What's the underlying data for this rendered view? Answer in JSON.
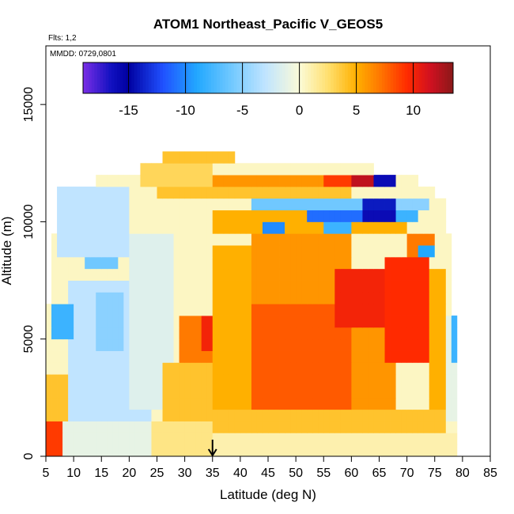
{
  "chart_data": {
    "type": "heatmap",
    "title": "ATOM1 Northeast_Pacific V_GEOS5",
    "notes": {
      "flights": "Flts: 1,2",
      "dates": "MMDD: 0729,0801"
    },
    "xlabel": "Latitude (deg N)",
    "ylabel": "Altitude (m)",
    "xlim": [
      5,
      85
    ],
    "ylim": [
      0,
      17500
    ],
    "x_ticks": [
      5,
      10,
      15,
      20,
      25,
      30,
      35,
      40,
      45,
      50,
      55,
      60,
      65,
      70,
      75,
      80,
      85
    ],
    "y_ticks": [
      0,
      5000,
      10000,
      15000
    ],
    "colorbar": {
      "range": [
        -19,
        13.5
      ],
      "ticks": [
        -15,
        -10,
        -5,
        0,
        5,
        10
      ],
      "tick_labels": [
        "-15",
        "-10",
        "-5",
        "0",
        "5",
        "10"
      ],
      "palette": [
        [
          -19,
          "#7a2ee6"
        ],
        [
          -16.5,
          "#1010c0"
        ],
        [
          -15,
          "#0000a0"
        ],
        [
          -12,
          "#2050ff"
        ],
        [
          -9,
          "#22a8ff"
        ],
        [
          -6,
          "#70c8ff"
        ],
        [
          -3,
          "#c0e4ff"
        ],
        [
          0,
          "#fbfbd8"
        ],
        [
          2.5,
          "#ffe070"
        ],
        [
          5,
          "#ffb000"
        ],
        [
          7,
          "#ff7a00"
        ],
        [
          9.5,
          "#ff2a00"
        ],
        [
          11.5,
          "#d01020"
        ],
        [
          13.5,
          "#8a1818"
        ]
      ]
    },
    "marker": {
      "latitude": 35,
      "symbol": "down-arrow"
    },
    "bins": {
      "dlat": 1,
      "dalt": 500
    },
    "coverage": [
      [
        0,
        1000,
        5,
        79
      ],
      [
        1000,
        2000,
        5,
        79
      ],
      [
        2000,
        3000,
        5,
        79
      ],
      [
        3000,
        4000,
        5,
        79
      ],
      [
        4000,
        5000,
        5,
        79
      ],
      [
        5000,
        5500,
        5,
        79
      ],
      [
        5500,
        6000,
        5,
        79
      ],
      [
        6000,
        6500,
        5,
        78
      ],
      [
        6500,
        7500,
        6,
        78
      ],
      [
        7500,
        8500,
        6,
        78
      ],
      [
        8500,
        9500,
        6,
        78
      ],
      [
        9500,
        10000,
        7,
        77
      ],
      [
        10000,
        11000,
        7,
        77
      ],
      [
        11000,
        11500,
        7,
        75
      ],
      [
        11500,
        12000,
        14,
        72
      ],
      [
        12000,
        12500,
        22,
        64
      ],
      [
        12500,
        13000,
        26,
        39
      ]
    ],
    "regions": [
      {
        "lat": [
          5,
          10
        ],
        "alt": [
          0,
          3500
        ],
        "v": 4
      },
      {
        "lat": [
          5,
          8
        ],
        "alt": [
          0,
          1500
        ],
        "v": 9
      },
      {
        "lat": [
          8,
          24
        ],
        "alt": [
          0,
          1500
        ],
        "v": -1
      },
      {
        "lat": [
          9,
          24
        ],
        "alt": [
          1500,
          7500
        ],
        "v": -3
      },
      {
        "lat": [
          12,
          18
        ],
        "alt": [
          8000,
          9500
        ],
        "v": -6
      },
      {
        "lat": [
          14,
          19
        ],
        "alt": [
          4500,
          7000
        ],
        "v": -5
      },
      {
        "lat": [
          6,
          10
        ],
        "alt": [
          5000,
          6500
        ],
        "v": -8
      },
      {
        "lat": [
          20,
          28
        ],
        "alt": [
          2000,
          9500
        ],
        "v": -1.5
      },
      {
        "lat": [
          24,
          35
        ],
        "alt": [
          0,
          1500
        ],
        "v": 2
      },
      {
        "lat": [
          26,
          35
        ],
        "alt": [
          1500,
          4000
        ],
        "v": 4
      },
      {
        "lat": [
          29,
          35
        ],
        "alt": [
          4000,
          6000
        ],
        "v": 7
      },
      {
        "lat": [
          33,
          35
        ],
        "alt": [
          4500,
          6000
        ],
        "v": 10
      },
      {
        "lat": [
          35,
          79
        ],
        "alt": [
          0,
          1000
        ],
        "v": 1
      },
      {
        "lat": [
          35,
          77
        ],
        "alt": [
          1000,
          2000
        ],
        "v": 4
      },
      {
        "lat": [
          35,
          42
        ],
        "alt": [
          2000,
          9000
        ],
        "v": 5
      },
      {
        "lat": [
          42,
          60
        ],
        "alt": [
          2000,
          6500
        ],
        "v": 8
      },
      {
        "lat": [
          42,
          60
        ],
        "alt": [
          6500,
          9500
        ],
        "v": 6
      },
      {
        "lat": [
          60,
          68
        ],
        "alt": [
          2000,
          5500
        ],
        "v": 6
      },
      {
        "lat": [
          57,
          66
        ],
        "alt": [
          5500,
          8000
        ],
        "v": 10
      },
      {
        "lat": [
          66,
          74
        ],
        "alt": [
          4000,
          8500
        ],
        "v": 9.5
      },
      {
        "lat": [
          74,
          77
        ],
        "alt": [
          2000,
          8000
        ],
        "v": 5
      },
      {
        "lat": [
          77,
          79
        ],
        "alt": [
          1500,
          6000
        ],
        "v": -1
      },
      {
        "lat": [
          78,
          79
        ],
        "alt": [
          4000,
          6000
        ],
        "v": -8
      },
      {
        "lat": [
          35,
          55
        ],
        "alt": [
          9500,
          10500
        ],
        "v": 5
      },
      {
        "lat": [
          44,
          48
        ],
        "alt": [
          9500,
          10000
        ],
        "v": -10
      },
      {
        "lat": [
          55,
          60
        ],
        "alt": [
          9500,
          10000
        ],
        "v": -8
      },
      {
        "lat": [
          60,
          70
        ],
        "alt": [
          9500,
          10500
        ],
        "v": 5
      },
      {
        "lat": [
          52,
          62
        ],
        "alt": [
          10000,
          10500
        ],
        "v": -11
      },
      {
        "lat": [
          62,
          68
        ],
        "alt": [
          10000,
          10500
        ],
        "v": -16
      },
      {
        "lat": [
          68,
          72
        ],
        "alt": [
          10000,
          10500
        ],
        "v": -8
      },
      {
        "lat": [
          42,
          62
        ],
        "alt": [
          10500,
          11000
        ],
        "v": -6
      },
      {
        "lat": [
          62,
          68
        ],
        "alt": [
          10500,
          11000
        ],
        "v": -14
      },
      {
        "lat": [
          68,
          74
        ],
        "alt": [
          10500,
          11000
        ],
        "v": -5
      },
      {
        "lat": [
          25,
          60
        ],
        "alt": [
          11000,
          11500
        ],
        "v": 4
      },
      {
        "lat": [
          50,
          60
        ],
        "alt": [
          11500,
          12000
        ],
        "v": 9
      },
      {
        "lat": [
          60,
          64
        ],
        "alt": [
          11500,
          12000
        ],
        "v": 12
      },
      {
        "lat": [
          64,
          68
        ],
        "alt": [
          11500,
          12000
        ],
        "v": -16
      },
      {
        "lat": [
          35,
          55
        ],
        "alt": [
          11500,
          12000
        ],
        "v": 6
      },
      {
        "lat": [
          22,
          35
        ],
        "alt": [
          11500,
          12500
        ],
        "v": 3
      },
      {
        "lat": [
          26,
          39
        ],
        "alt": [
          12500,
          13000
        ],
        "v": 4
      },
      {
        "lat": [
          7,
          20
        ],
        "alt": [
          8500,
          11500
        ],
        "v": -3
      },
      {
        "lat": [
          70,
          75
        ],
        "alt": [
          8500,
          9500
        ],
        "v": 7
      },
      {
        "lat": [
          72,
          75
        ],
        "alt": [
          8500,
          9000
        ],
        "v": -9
      }
    ]
  }
}
